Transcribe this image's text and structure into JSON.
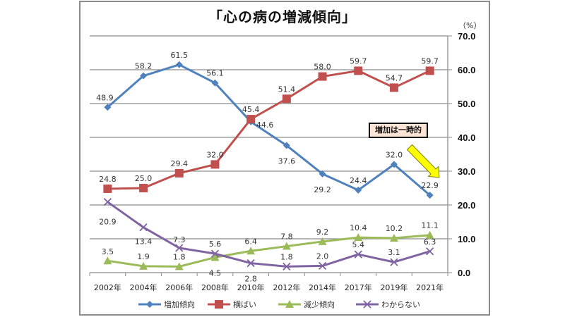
{
  "chart_data": {
    "type": "line",
    "title": "「心の病の増減傾向」",
    "unit_label": "（%）",
    "xlabel": "",
    "ylabel": "",
    "ylim": [
      0,
      70
    ],
    "y_ticks": [
      "0.0",
      "10.0",
      "20.0",
      "30.0",
      "40.0",
      "50.0",
      "60.0",
      "70.0"
    ],
    "y_axis_position": "right",
    "grid": true,
    "legend_position": "bottom",
    "categories": [
      "2002年",
      "2004年",
      "2006年",
      "2008年",
      "2010年",
      "2012年",
      "2014年",
      "2017年",
      "2019年",
      "2021年"
    ],
    "series": [
      {
        "name": "増加傾向",
        "color": "#4f81bd",
        "marker": "diamond",
        "values": [
          48.9,
          58.2,
          61.5,
          56.1,
          44.6,
          37.6,
          29.2,
          24.4,
          32.0,
          22.9
        ],
        "labels": [
          "48.9",
          "58.2",
          "61.5",
          "56.1",
          "44.6",
          "37.6",
          "29.2",
          "24.4",
          "32.0",
          "22.9"
        ]
      },
      {
        "name": "横ばい",
        "color": "#c0504d",
        "marker": "square",
        "values": [
          24.8,
          25.0,
          29.4,
          32.0,
          45.4,
          51.4,
          58.0,
          59.7,
          54.7,
          59.7
        ],
        "labels": [
          "24.8",
          "25.0",
          "29.4",
          "32.0",
          "45.4",
          "51.4",
          "58.0",
          "59.7",
          "54.7",
          "59.7"
        ]
      },
      {
        "name": "減少傾向",
        "color": "#9bbb59",
        "marker": "triangle",
        "values": [
          3.5,
          1.9,
          1.8,
          4.5,
          6.4,
          7.8,
          9.2,
          10.4,
          10.2,
          11.1
        ],
        "labels": [
          "3.5",
          "1.9",
          "1.8",
          "4.5",
          "6.4",
          "7.8",
          "9.2",
          "10.4",
          "10.2",
          "11.1"
        ]
      },
      {
        "name": "わからない",
        "color": "#8064a2",
        "marker": "x",
        "values": [
          20.9,
          13.4,
          7.3,
          5.6,
          2.8,
          1.8,
          2.0,
          5.4,
          3.1,
          6.3
        ],
        "labels": [
          "20.9",
          "13.4",
          "7.3",
          "5.6",
          "2.8",
          "1.8",
          "2.0",
          "5.4",
          "3.1",
          "6.3"
        ]
      }
    ],
    "annotation": {
      "text": "増加は一時的",
      "arrow_color": "#ffff00",
      "points_to": "増加傾向 2021年"
    }
  }
}
